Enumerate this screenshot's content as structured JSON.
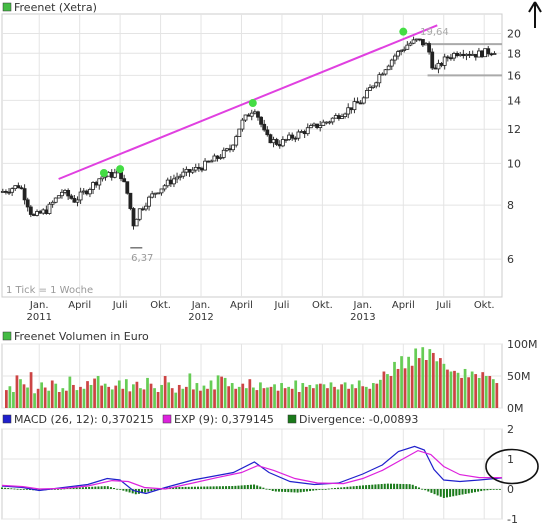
{
  "chart_data": [
    {
      "type": "candlestick",
      "legend": [
        {
          "name": "Freenet (Xetra)",
          "color": "#44bb44"
        }
      ],
      "note": "1 Tick = 1 Woche",
      "scale": "log",
      "ylim": [
        4.9,
        22.2
      ],
      "y_ticks": [
        6,
        8,
        10,
        12,
        14,
        16,
        18,
        20
      ],
      "x_ticks": [
        {
          "t": 0.0,
          "label": "Jan.",
          "year": "2011"
        },
        {
          "t": 0.25,
          "label": "April",
          "year": ""
        },
        {
          "t": 0.5,
          "label": "Juli",
          "year": ""
        },
        {
          "t": 0.75,
          "label": "Okt.",
          "year": ""
        },
        {
          "t": 1.0,
          "label": "Jan.",
          "year": "2012"
        },
        {
          "t": 1.25,
          "label": "April",
          "year": ""
        },
        {
          "t": 1.5,
          "label": "Juli",
          "year": ""
        },
        {
          "t": 1.75,
          "label": "Okt.",
          "year": ""
        },
        {
          "t": 2.0,
          "label": "Jan.",
          "year": "2013"
        },
        {
          "t": 2.25,
          "label": "April",
          "year": ""
        },
        {
          "t": 2.5,
          "label": "Juli",
          "year": ""
        },
        {
          "t": 2.75,
          "label": "Okt.",
          "year": ""
        }
      ],
      "xlim": [
        -0.23,
        2.86
      ],
      "path_points": [
        [
          -0.23,
          8.6
        ],
        [
          -0.12,
          8.9
        ],
        [
          -0.04,
          7.5
        ],
        [
          0.05,
          7.8
        ],
        [
          0.14,
          8.6
        ],
        [
          0.22,
          8.2
        ],
        [
          0.3,
          8.7
        ],
        [
          0.38,
          9.3
        ],
        [
          0.5,
          9.5
        ],
        [
          0.55,
          8.4
        ],
        [
          0.58,
          7.2
        ],
        [
          0.62,
          7.8
        ],
        [
          0.72,
          8.6
        ],
        [
          0.85,
          9.3
        ],
        [
          1.0,
          9.8
        ],
        [
          1.1,
          10.3
        ],
        [
          1.18,
          10.8
        ],
        [
          1.25,
          12.4
        ],
        [
          1.33,
          13.5
        ],
        [
          1.4,
          11.5
        ],
        [
          1.48,
          11.1
        ],
        [
          1.62,
          11.8
        ],
        [
          1.8,
          12.6
        ],
        [
          1.9,
          13.3
        ],
        [
          2.0,
          14.0
        ],
        [
          2.1,
          16.0
        ],
        [
          2.2,
          17.8
        ],
        [
          2.28,
          18.9
        ],
        [
          2.34,
          19.3
        ],
        [
          2.4,
          18.7
        ],
        [
          2.44,
          16.3
        ],
        [
          2.52,
          17.6
        ],
        [
          2.6,
          18.2
        ],
        [
          2.7,
          17.9
        ],
        [
          2.82,
          18.3
        ]
      ],
      "low_marker": {
        "t": 0.6,
        "value": 6.37,
        "label": "6,37"
      },
      "high_marker": {
        "t": 2.28,
        "value": 19.64,
        "label": "19,64"
      },
      "trend_line": {
        "from": [
          0.12,
          9.2
        ],
        "to": [
          2.46,
          20.9
        ],
        "color": "#e040e0"
      },
      "touch_points": [
        [
          0.4,
          9.5
        ],
        [
          0.5,
          9.7
        ],
        [
          1.32,
          13.8
        ],
        [
          2.25,
          20.2
        ]
      ],
      "support_lines": [
        {
          "from": [
            2.42,
            18.9
          ],
          "to": [
            2.86,
            18.9
          ],
          "color": "#aaaaaa"
        },
        {
          "from": [
            2.4,
            16.0
          ],
          "to": [
            2.86,
            16.0
          ],
          "color": "#aaaaaa"
        }
      ]
    },
    {
      "type": "bar",
      "legend": [
        {
          "name": "Freenet Volumen in Euro",
          "color": "#44bb44"
        }
      ],
      "ylim": [
        0,
        100
      ],
      "y_ticks": [
        {
          "v": 0,
          "label": "0M"
        },
        {
          "v": 50,
          "label": "50M"
        },
        {
          "v": 100,
          "label": "100M"
        }
      ],
      "values": [
        28,
        34,
        25,
        51,
        45,
        37,
        32,
        56,
        23,
        30,
        40,
        32,
        27,
        43,
        38,
        25,
        31,
        27,
        49,
        36,
        28,
        33,
        30,
        42,
        36,
        46,
        50,
        35,
        38,
        33,
        29,
        35,
        43,
        30,
        45,
        26,
        37,
        41,
        31,
        29,
        47,
        38,
        31,
        25,
        36,
        50,
        40,
        31,
        24,
        36,
        30,
        33,
        54,
        29,
        39,
        27,
        35,
        30,
        43,
        29,
        51,
        49,
        47,
        34,
        39,
        30,
        33,
        38,
        31,
        45,
        32,
        28,
        40,
        31,
        32,
        33,
        37,
        27,
        39,
        31,
        33,
        30,
        43,
        25,
        39,
        33,
        36,
        31,
        37,
        38,
        37,
        31,
        40,
        33,
        29,
        37,
        40,
        30,
        37,
        31,
        43,
        34,
        33,
        30,
        39,
        38,
        44,
        57,
        53,
        50,
        72,
        61,
        81,
        62,
        80,
        66,
        93,
        78,
        95,
        75,
        92,
        86,
        73,
        78,
        69,
        60,
        57,
        58,
        55,
        47,
        61,
        48,
        57,
        53,
        47,
        56,
        50,
        50,
        45,
        39
      ],
      "colors": [
        "r",
        "g",
        "g",
        "r",
        "g",
        "r",
        "g",
        "r",
        "g",
        "r",
        "g",
        "r",
        "g",
        "r",
        "g",
        "r",
        "g",
        "r",
        "g",
        "r",
        "g",
        "r",
        "g",
        "r",
        "g",
        "r",
        "g",
        "r",
        "g",
        "r",
        "g",
        "r",
        "g",
        "r",
        "g",
        "r",
        "g",
        "r",
        "g",
        "r",
        "g",
        "r",
        "g",
        "r",
        "g",
        "r",
        "g",
        "r",
        "g",
        "r",
        "g",
        "r",
        "g",
        "r",
        "g",
        "r",
        "g",
        "r",
        "g",
        "r",
        "g",
        "r",
        "g",
        "r",
        "g",
        "r",
        "g",
        "r",
        "g",
        "r",
        "g",
        "r",
        "g",
        "r",
        "g",
        "r",
        "g",
        "r",
        "g",
        "r",
        "g",
        "r",
        "g",
        "r",
        "g",
        "r",
        "g",
        "r",
        "g",
        "r",
        "g",
        "r",
        "g",
        "r",
        "g",
        "r",
        "g",
        "r",
        "g",
        "r",
        "g",
        "r",
        "g",
        "r",
        "g",
        "r",
        "g",
        "r",
        "g",
        "r",
        "g",
        "r",
        "g",
        "r",
        "g",
        "r",
        "g",
        "r",
        "g",
        "r",
        "g",
        "r",
        "g",
        "r",
        "g",
        "r",
        "g",
        "r",
        "g",
        "r",
        "g",
        "r",
        "g",
        "r",
        "g",
        "r",
        "g",
        "r",
        "g",
        "r"
      ]
    },
    {
      "type": "line",
      "legend": [
        {
          "name": "MACD (26, 12): 0,370215",
          "color": "#2020cc"
        },
        {
          "name": "EXP (9): 0,379145",
          "color": "#dd22dd"
        },
        {
          "name": "Divergence: -0,00893",
          "color": "#1a7a1a"
        }
      ],
      "ylim": [
        -1,
        2
      ],
      "y_ticks": [
        {
          "v": -1,
          "label": "-1"
        },
        {
          "v": 0,
          "label": "0"
        },
        {
          "v": 1,
          "label": "1"
        },
        {
          "v": 2,
          "label": "2"
        }
      ],
      "series": [
        {
          "key": "macd",
          "points": [
            [
              -0.23,
              0.1
            ],
            [
              -0.1,
              0.05
            ],
            [
              0.0,
              -0.05
            ],
            [
              0.15,
              0.05
            ],
            [
              0.3,
              0.15
            ],
            [
              0.42,
              0.35
            ],
            [
              0.5,
              0.3
            ],
            [
              0.58,
              -0.05
            ],
            [
              0.66,
              -0.15
            ],
            [
              0.78,
              0.05
            ],
            [
              0.95,
              0.3
            ],
            [
              1.1,
              0.45
            ],
            [
              1.2,
              0.55
            ],
            [
              1.33,
              0.9
            ],
            [
              1.42,
              0.55
            ],
            [
              1.55,
              0.25
            ],
            [
              1.7,
              0.15
            ],
            [
              1.85,
              0.2
            ],
            [
              2.0,
              0.5
            ],
            [
              2.12,
              0.8
            ],
            [
              2.22,
              1.25
            ],
            [
              2.32,
              1.42
            ],
            [
              2.38,
              1.3
            ],
            [
              2.44,
              0.65
            ],
            [
              2.5,
              0.3
            ],
            [
              2.6,
              0.25
            ],
            [
              2.72,
              0.3
            ],
            [
              2.86,
              0.37
            ]
          ]
        },
        {
          "key": "exp",
          "points": [
            [
              -0.23,
              0.12
            ],
            [
              -0.1,
              0.08
            ],
            [
              0.0,
              0.0
            ],
            [
              0.15,
              0.02
            ],
            [
              0.3,
              0.1
            ],
            [
              0.45,
              0.28
            ],
            [
              0.55,
              0.25
            ],
            [
              0.65,
              0.05
            ],
            [
              0.78,
              0.0
            ],
            [
              0.95,
              0.2
            ],
            [
              1.1,
              0.38
            ],
            [
              1.25,
              0.55
            ],
            [
              1.35,
              0.78
            ],
            [
              1.45,
              0.62
            ],
            [
              1.58,
              0.35
            ],
            [
              1.72,
              0.2
            ],
            [
              1.88,
              0.18
            ],
            [
              2.0,
              0.35
            ],
            [
              2.12,
              0.62
            ],
            [
              2.24,
              0.98
            ],
            [
              2.34,
              1.28
            ],
            [
              2.42,
              1.15
            ],
            [
              2.5,
              0.75
            ],
            [
              2.6,
              0.48
            ],
            [
              2.72,
              0.38
            ],
            [
              2.86,
              0.38
            ]
          ]
        }
      ],
      "divergence_points": [
        [
          -0.23,
          0.05
        ],
        [
          0.0,
          -0.06
        ],
        [
          0.2,
          0.04
        ],
        [
          0.42,
          0.1
        ],
        [
          0.6,
          -0.18
        ],
        [
          0.8,
          0.06
        ],
        [
          1.0,
          0.08
        ],
        [
          1.2,
          0.1
        ],
        [
          1.33,
          0.15
        ],
        [
          1.45,
          -0.08
        ],
        [
          1.6,
          -0.12
        ],
        [
          1.8,
          0.02
        ],
        [
          2.0,
          0.12
        ],
        [
          2.15,
          0.18
        ],
        [
          2.3,
          0.16
        ],
        [
          2.42,
          -0.12
        ],
        [
          2.5,
          -0.3
        ],
        [
          2.62,
          -0.18
        ],
        [
          2.75,
          -0.05
        ],
        [
          2.86,
          0.0
        ]
      ],
      "highlight": {
        "t": 2.86,
        "value": 0.75
      }
    }
  ]
}
